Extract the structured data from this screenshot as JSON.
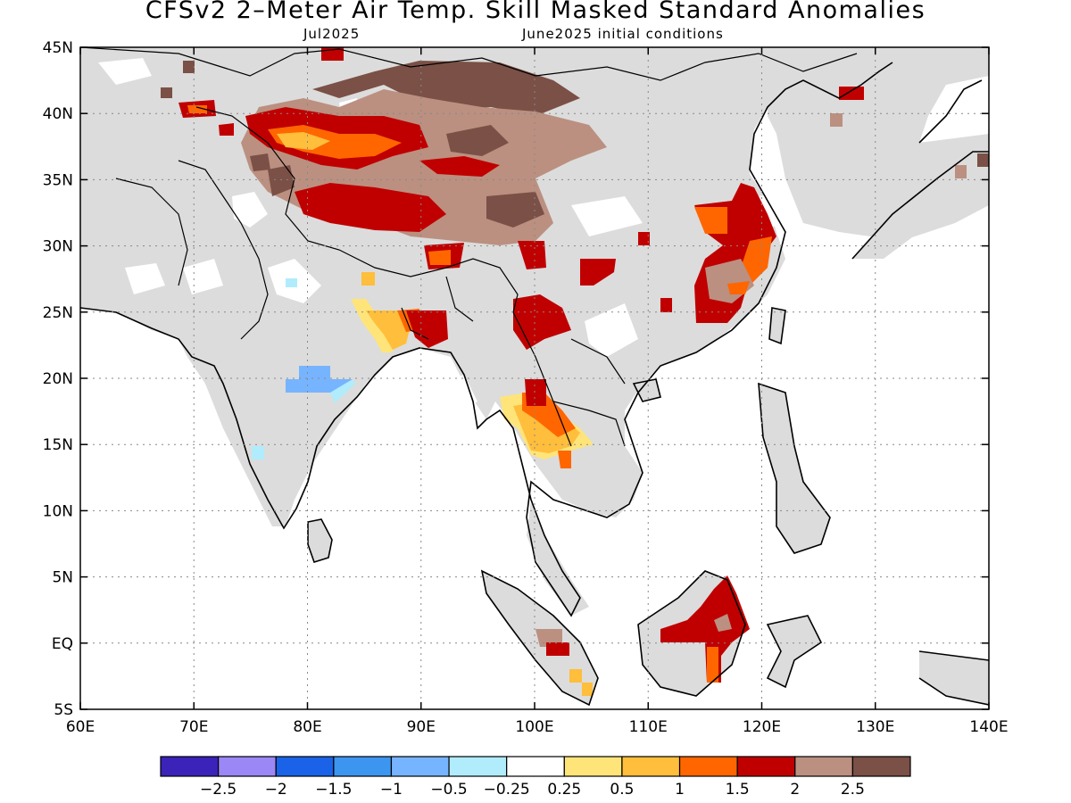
{
  "title": "CFSv2 2–Meter Air Temp. Skill Masked Standard Anomalies",
  "subtitle_month": "Jul2025",
  "subtitle_ic": "June2025 initial conditions",
  "map": {
    "lon_range": [
      60,
      140
    ],
    "lat_range": [
      -5,
      45
    ],
    "grid": true,
    "background_land_no_skill": "#dcdcdc",
    "lat_ticks": [
      {
        "value": 45,
        "label": "45N"
      },
      {
        "value": 40,
        "label": "40N"
      },
      {
        "value": 35,
        "label": "35N"
      },
      {
        "value": 30,
        "label": "30N"
      },
      {
        "value": 25,
        "label": "25N"
      },
      {
        "value": 20,
        "label": "20N"
      },
      {
        "value": 15,
        "label": "15N"
      },
      {
        "value": 10,
        "label": "10N"
      },
      {
        "value": 5,
        "label": "5N"
      },
      {
        "value": 0,
        "label": "EQ"
      },
      {
        "value": -5,
        "label": "5S"
      }
    ],
    "lon_ticks": [
      {
        "value": 60,
        "label": "60E"
      },
      {
        "value": 70,
        "label": "70E"
      },
      {
        "value": 80,
        "label": "80E"
      },
      {
        "value": 90,
        "label": "90E"
      },
      {
        "value": 100,
        "label": "100E"
      },
      {
        "value": 110,
        "label": "110E"
      },
      {
        "value": 120,
        "label": "120E"
      },
      {
        "value": 130,
        "label": "130E"
      },
      {
        "value": 140,
        "label": "140E"
      }
    ]
  },
  "anomaly_regions": [
    {
      "region": "Tibetan Plateau / Tarim",
      "level": "2.5",
      "color": "#7b5046"
    },
    {
      "region": "Tibetan Plateau / Tarim",
      "level": "2",
      "color": "#bb9080"
    },
    {
      "region": "Southern Tibet",
      "level": "1.5",
      "color": "#c00000"
    },
    {
      "region": "Eastern China",
      "level": "1.5",
      "color": "#c00000"
    },
    {
      "region": "Thailand",
      "level": "1",
      "color": "#ff6600"
    },
    {
      "region": "Borneo",
      "level": "1.5",
      "color": "#c00000"
    },
    {
      "region": "Central India",
      "level": "-0.5",
      "color": "#77b4ff"
    }
  ],
  "colorbar": {
    "colors": [
      "#3b22b8",
      "#9b87f5",
      "#1a63e8",
      "#3c96f0",
      "#77b4ff",
      "#b0ecfb",
      "#ffffff",
      "#ffe47a",
      "#ffbe3b",
      "#ff6600",
      "#c00000",
      "#bb9080",
      "#7b5046"
    ],
    "labels": [
      "-2.5",
      "-2",
      "-1.5",
      "-1",
      "-0.5",
      "-0.25",
      "0.25",
      "0.5",
      "1",
      "1.5",
      "2",
      "2.5"
    ]
  }
}
